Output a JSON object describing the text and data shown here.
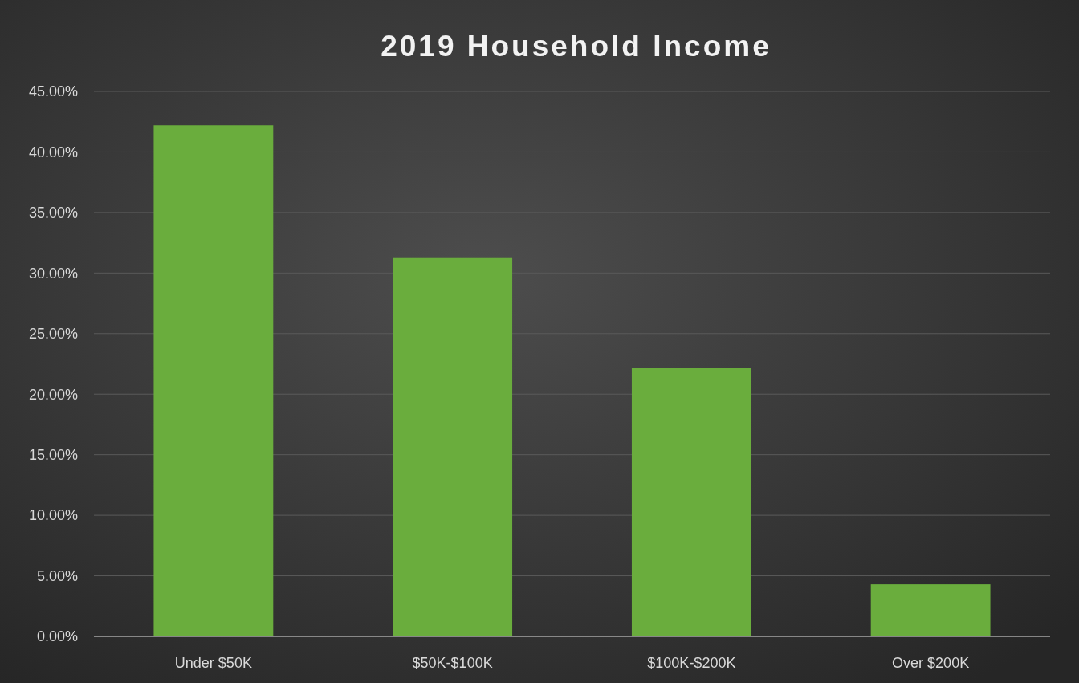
{
  "chart_data": {
    "type": "bar",
    "title": "2019 Household Income",
    "categories": [
      "Under $50K",
      "$50K-$100K",
      "$100K-$200K",
      "Over $200K"
    ],
    "values": [
      42.2,
      31.3,
      22.2,
      4.3
    ],
    "color": "#6aad3d",
    "ylim": [
      0,
      45
    ],
    "yticks": [
      {
        "value": 0,
        "label": "0.00%"
      },
      {
        "value": 5,
        "label": "5.00%"
      },
      {
        "value": 10,
        "label": "10.00%"
      },
      {
        "value": 15,
        "label": "15.00%"
      },
      {
        "value": 20,
        "label": "20.00%"
      },
      {
        "value": 25,
        "label": "25.00%"
      },
      {
        "value": 30,
        "label": "30.00%"
      },
      {
        "value": 35,
        "label": "35.00%"
      },
      {
        "value": 40,
        "label": "40.00%"
      },
      {
        "value": 45,
        "label": "45.00%"
      }
    ],
    "grid": "y"
  }
}
